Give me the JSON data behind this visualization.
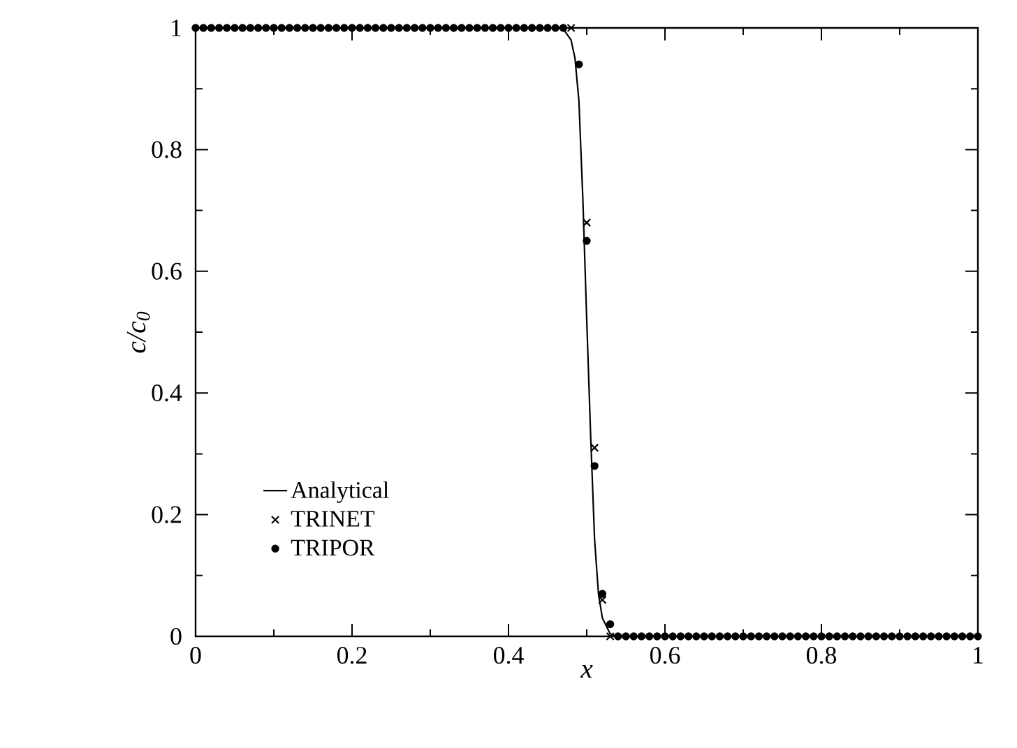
{
  "chart_data": {
    "type": "line",
    "xlabel": "x",
    "ylabel": "c/c$_{0}$",
    "xlim": [
      0,
      1
    ],
    "ylim": [
      0,
      1
    ],
    "xticks": [
      0,
      0.2,
      0.4,
      0.6,
      0.8,
      1,
      {
        "value": 0.1,
        "label": null
      },
      {
        "value": 0.3,
        "label": null
      },
      {
        "value": 0.5,
        "label": null
      },
      {
        "value": 0.7,
        "label": null
      },
      {
        "value": 0.9,
        "label": null
      }
    ],
    "yticks": [
      0,
      0.2,
      0.4,
      0.6,
      0.8,
      1,
      {
        "value": 0.1,
        "label": null
      },
      {
        "value": 0.3,
        "label": null
      },
      {
        "value": 0.5,
        "label": null
      },
      {
        "value": 0.7,
        "label": null
      },
      {
        "value": 0.9,
        "label": null
      }
    ],
    "legend": "bottom left",
    "x": [
      0,
      0.01,
      0.02,
      0.03,
      0.04,
      0.05,
      0.06,
      0.07,
      0.08,
      0.09,
      0.1,
      0.11,
      0.12,
      0.13,
      0.14,
      0.15,
      0.16,
      0.17,
      0.18,
      0.19,
      0.2,
      0.21,
      0.22,
      0.23,
      0.24,
      0.25,
      0.26,
      0.27,
      0.28,
      0.29,
      0.3,
      0.31,
      0.32,
      0.33,
      0.34,
      0.35,
      0.36,
      0.37,
      0.38,
      0.39,
      0.4,
      0.41,
      0.42,
      0.43,
      0.44,
      0.45,
      0.46,
      0.47,
      0.48,
      0.49,
      0.5,
      0.51,
      0.52,
      0.53,
      0.54,
      0.55,
      0.56,
      0.57,
      0.58,
      0.59,
      0.6,
      0.61,
      0.62,
      0.63,
      0.64,
      0.65,
      0.66,
      0.67,
      0.68,
      0.69,
      0.7,
      0.71,
      0.72,
      0.73,
      0.74,
      0.75,
      0.76,
      0.77,
      0.78,
      0.79,
      0.8,
      0.81,
      0.82,
      0.83,
      0.84,
      0.85,
      0.86,
      0.87,
      0.88,
      0.89,
      0.9,
      0.91,
      0.92,
      0.93,
      0.94,
      0.95,
      0.96,
      0.97,
      0.98,
      0.99,
      1
    ],
    "series": [
      {
        "name": "Analytical",
        "color": "#000000",
        "marker": "none",
        "line_style": "solid",
        "x": [
          0,
          0.46,
          0.47,
          0.48,
          0.485,
          0.49,
          0.495,
          0.5,
          0.505,
          0.51,
          0.515,
          0.52,
          0.53,
          0.54,
          1
        ],
        "values": [
          1,
          1,
          0.998,
          0.98,
          0.95,
          0.88,
          0.72,
          0.52,
          0.33,
          0.16,
          0.07,
          0.03,
          0.004,
          0,
          0
        ]
      },
      {
        "name": "TRINET",
        "type": "scatter",
        "color": "#000000",
        "marker": "cross",
        "values": [
          null,
          null,
          null,
          null,
          null,
          null,
          null,
          null,
          null,
          null,
          null,
          null,
          null,
          null,
          null,
          null,
          null,
          null,
          null,
          null,
          null,
          null,
          null,
          null,
          null,
          null,
          null,
          null,
          null,
          null,
          null,
          null,
          null,
          null,
          null,
          null,
          null,
          null,
          null,
          null,
          null,
          null,
          null,
          null,
          null,
          null,
          null,
          null,
          1,
          null,
          0.68,
          0.31,
          0.06,
          0,
          null,
          null,
          null,
          null,
          null,
          null,
          null,
          null,
          null,
          null,
          null,
          null,
          null,
          null,
          null,
          null,
          null,
          null,
          null,
          null,
          null,
          null,
          null,
          null,
          null,
          null,
          null,
          null,
          null,
          null,
          null,
          null,
          null,
          null,
          null,
          null,
          null,
          null,
          null,
          null,
          null,
          null,
          null,
          null,
          null,
          null,
          null
        ]
      },
      {
        "name": "TRIPOR",
        "type": "scatter",
        "color": "#000000",
        "marker": "circle",
        "values": [
          1,
          1,
          1,
          1,
          1,
          1,
          1,
          1,
          1,
          1,
          1,
          1,
          1,
          1,
          1,
          1,
          1,
          1,
          1,
          1,
          1,
          1,
          1,
          1,
          1,
          1,
          1,
          1,
          1,
          1,
          1,
          1,
          1,
          1,
          1,
          1,
          1,
          1,
          1,
          1,
          1,
          1,
          1,
          1,
          1,
          1,
          1,
          1,
          null,
          0.94,
          0.65,
          0.28,
          0.07,
          0.02,
          0,
          0,
          0,
          0,
          0,
          0,
          0,
          0,
          0,
          0,
          0,
          0,
          0,
          0,
          0,
          0,
          0,
          0,
          0,
          0,
          0,
          0,
          0,
          0,
          0,
          0,
          0,
          0,
          0,
          0,
          0,
          0,
          0,
          0,
          0,
          0,
          0,
          0,
          0,
          0,
          0,
          0,
          0,
          0,
          0,
          0,
          0
        ]
      }
    ]
  }
}
